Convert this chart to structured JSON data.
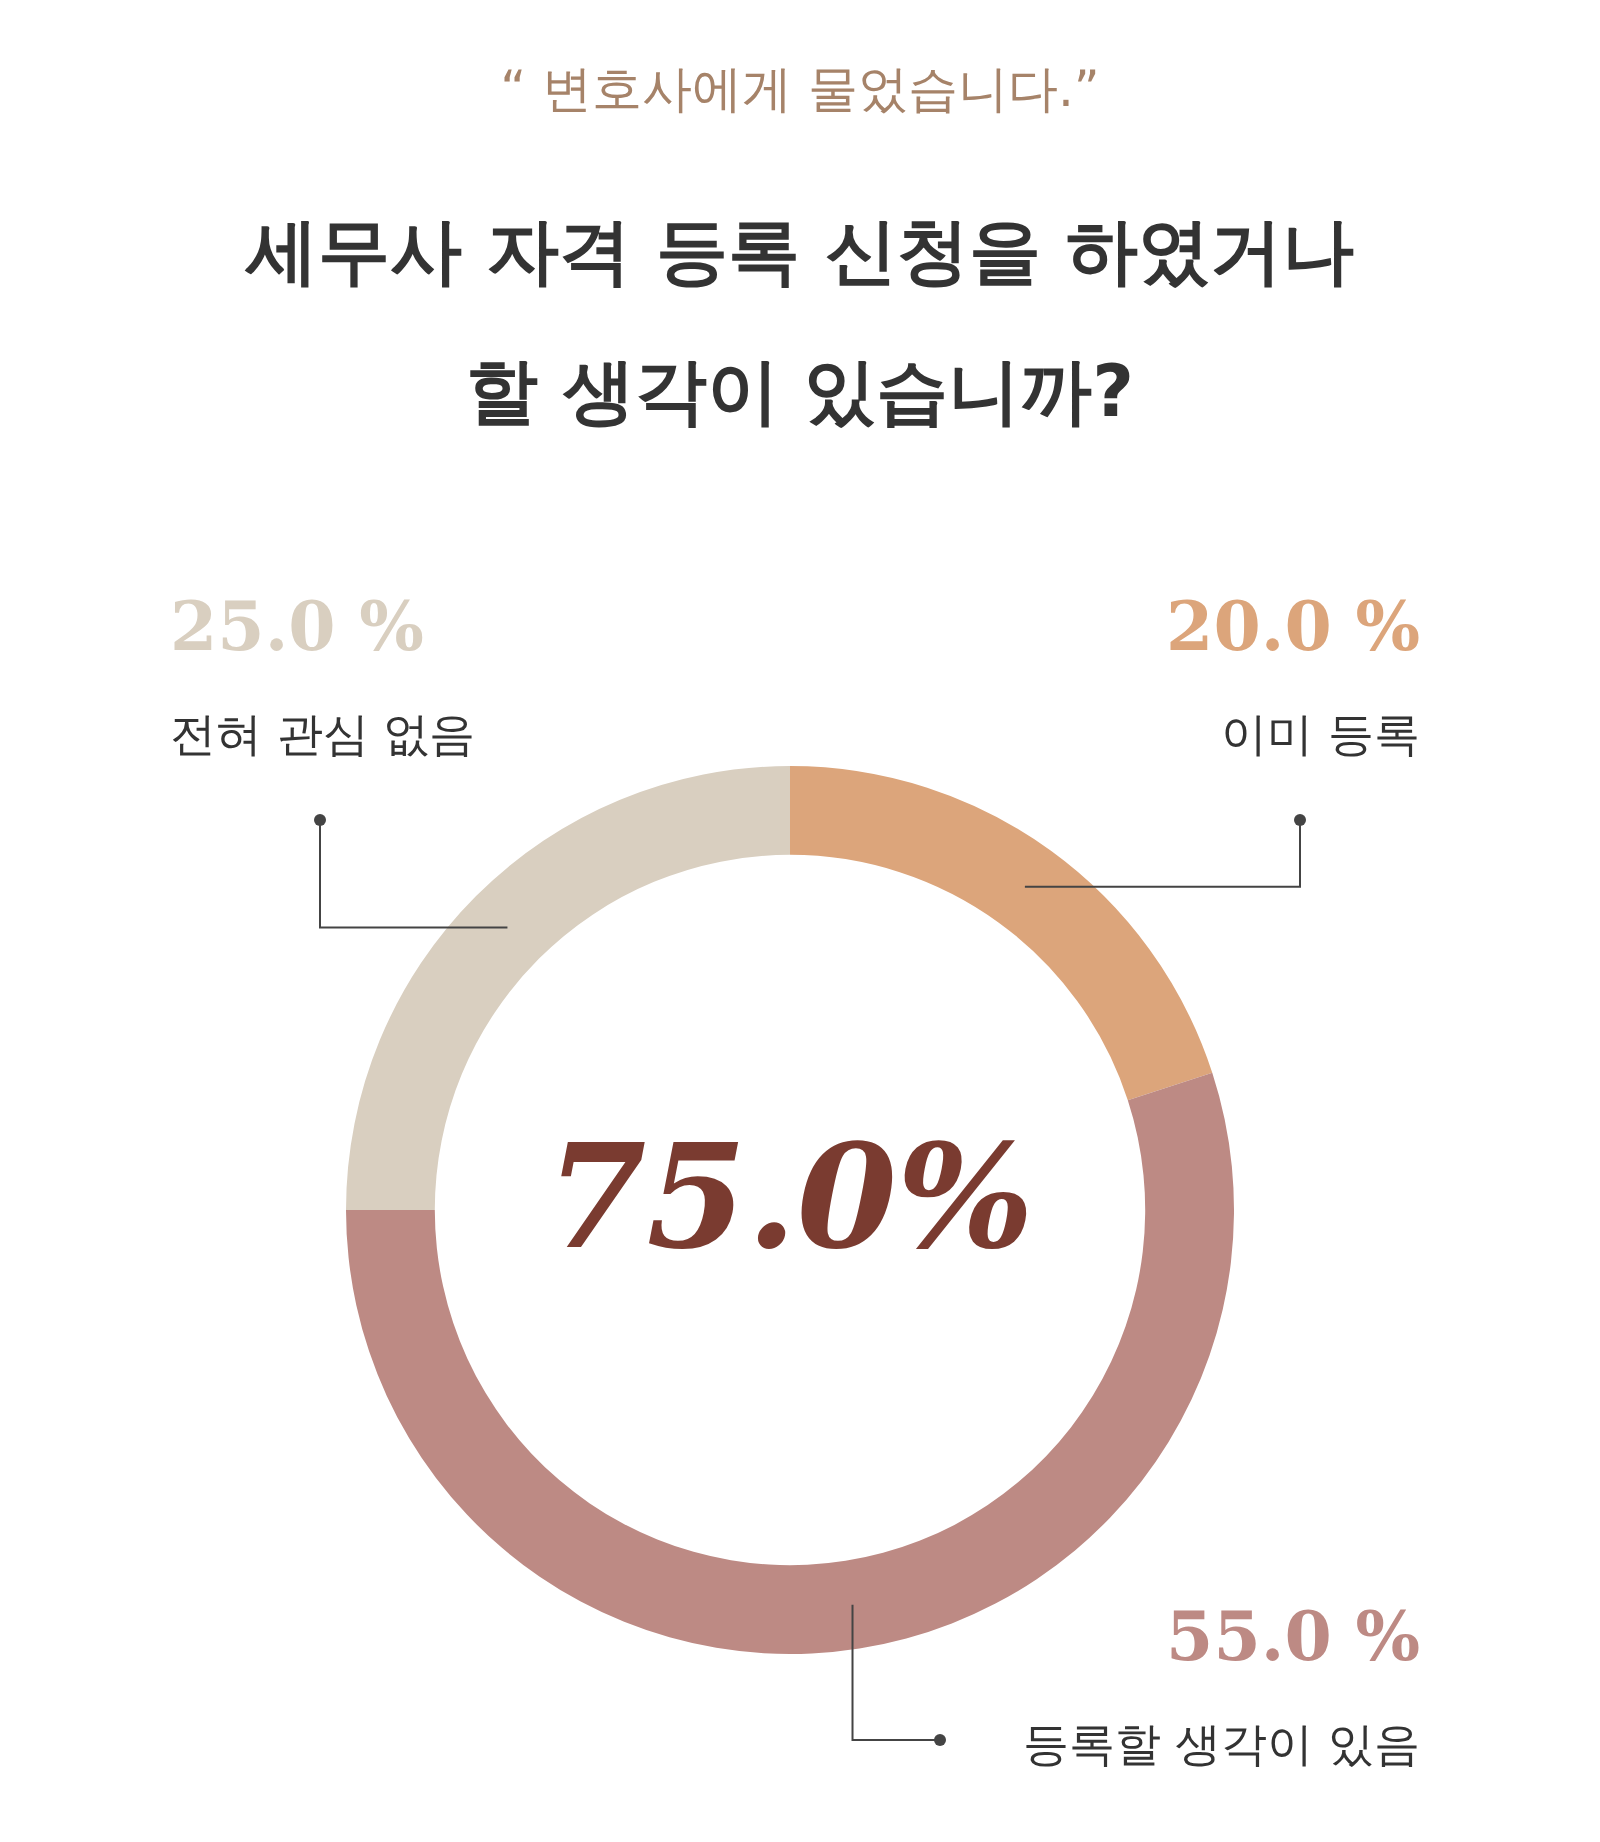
{
  "chart_data": {
    "type": "donut",
    "subtitle": "“ 변호사에게 물었습니다.”",
    "title": "세무사 자격 등록 신청을 하였거나 할 생각이 있습니까?",
    "categories": [
      "이미 등록",
      "등록할 생각이 있음",
      "전혀 관심 없음"
    ],
    "values": [
      20,
      55,
      25
    ],
    "colors": [
      "#dca57b",
      "#bd8a84",
      "#d9cfc0"
    ],
    "value_labels": [
      "20.0 %",
      "55.0 %",
      "25.0 %"
    ],
    "annotations": [
      "75.0%"
    ],
    "legend": false
  }
}
